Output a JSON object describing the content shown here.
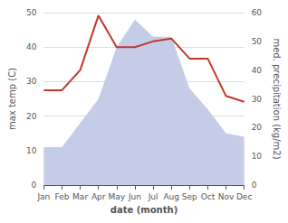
{
  "chart_data": {
    "type": "line",
    "categories": [
      "Jan",
      "Feb",
      "Mar",
      "Apr",
      "May",
      "Jun",
      "Jul",
      "Aug",
      "Sep",
      "Oct",
      "Nov",
      "Dec"
    ],
    "xlabel": "date (month)",
    "ylabel": "max temp (C)",
    "y2label": "med. precipitation (kg/m2)",
    "series": [
      {
        "type": "area",
        "color": "#c5cce8",
        "values": [
          11,
          11,
          18,
          25,
          40,
          48,
          43,
          43,
          28,
          22,
          15,
          14
        ]
      },
      {
        "type": "line",
        "color": "#c0392b",
        "axis": "y2",
        "values": [
          33,
          33,
          40,
          59,
          48,
          48,
          50,
          51,
          44,
          44,
          31,
          29
        ]
      }
    ],
    "ylim": [
      0,
      50
    ],
    "yticks": [
      0,
      10,
      20,
      30,
      40,
      50
    ],
    "y2lim": [
      0,
      60
    ],
    "y2ticks": [
      0,
      10,
      20,
      30,
      40,
      50,
      60
    ],
    "grid": true
  }
}
